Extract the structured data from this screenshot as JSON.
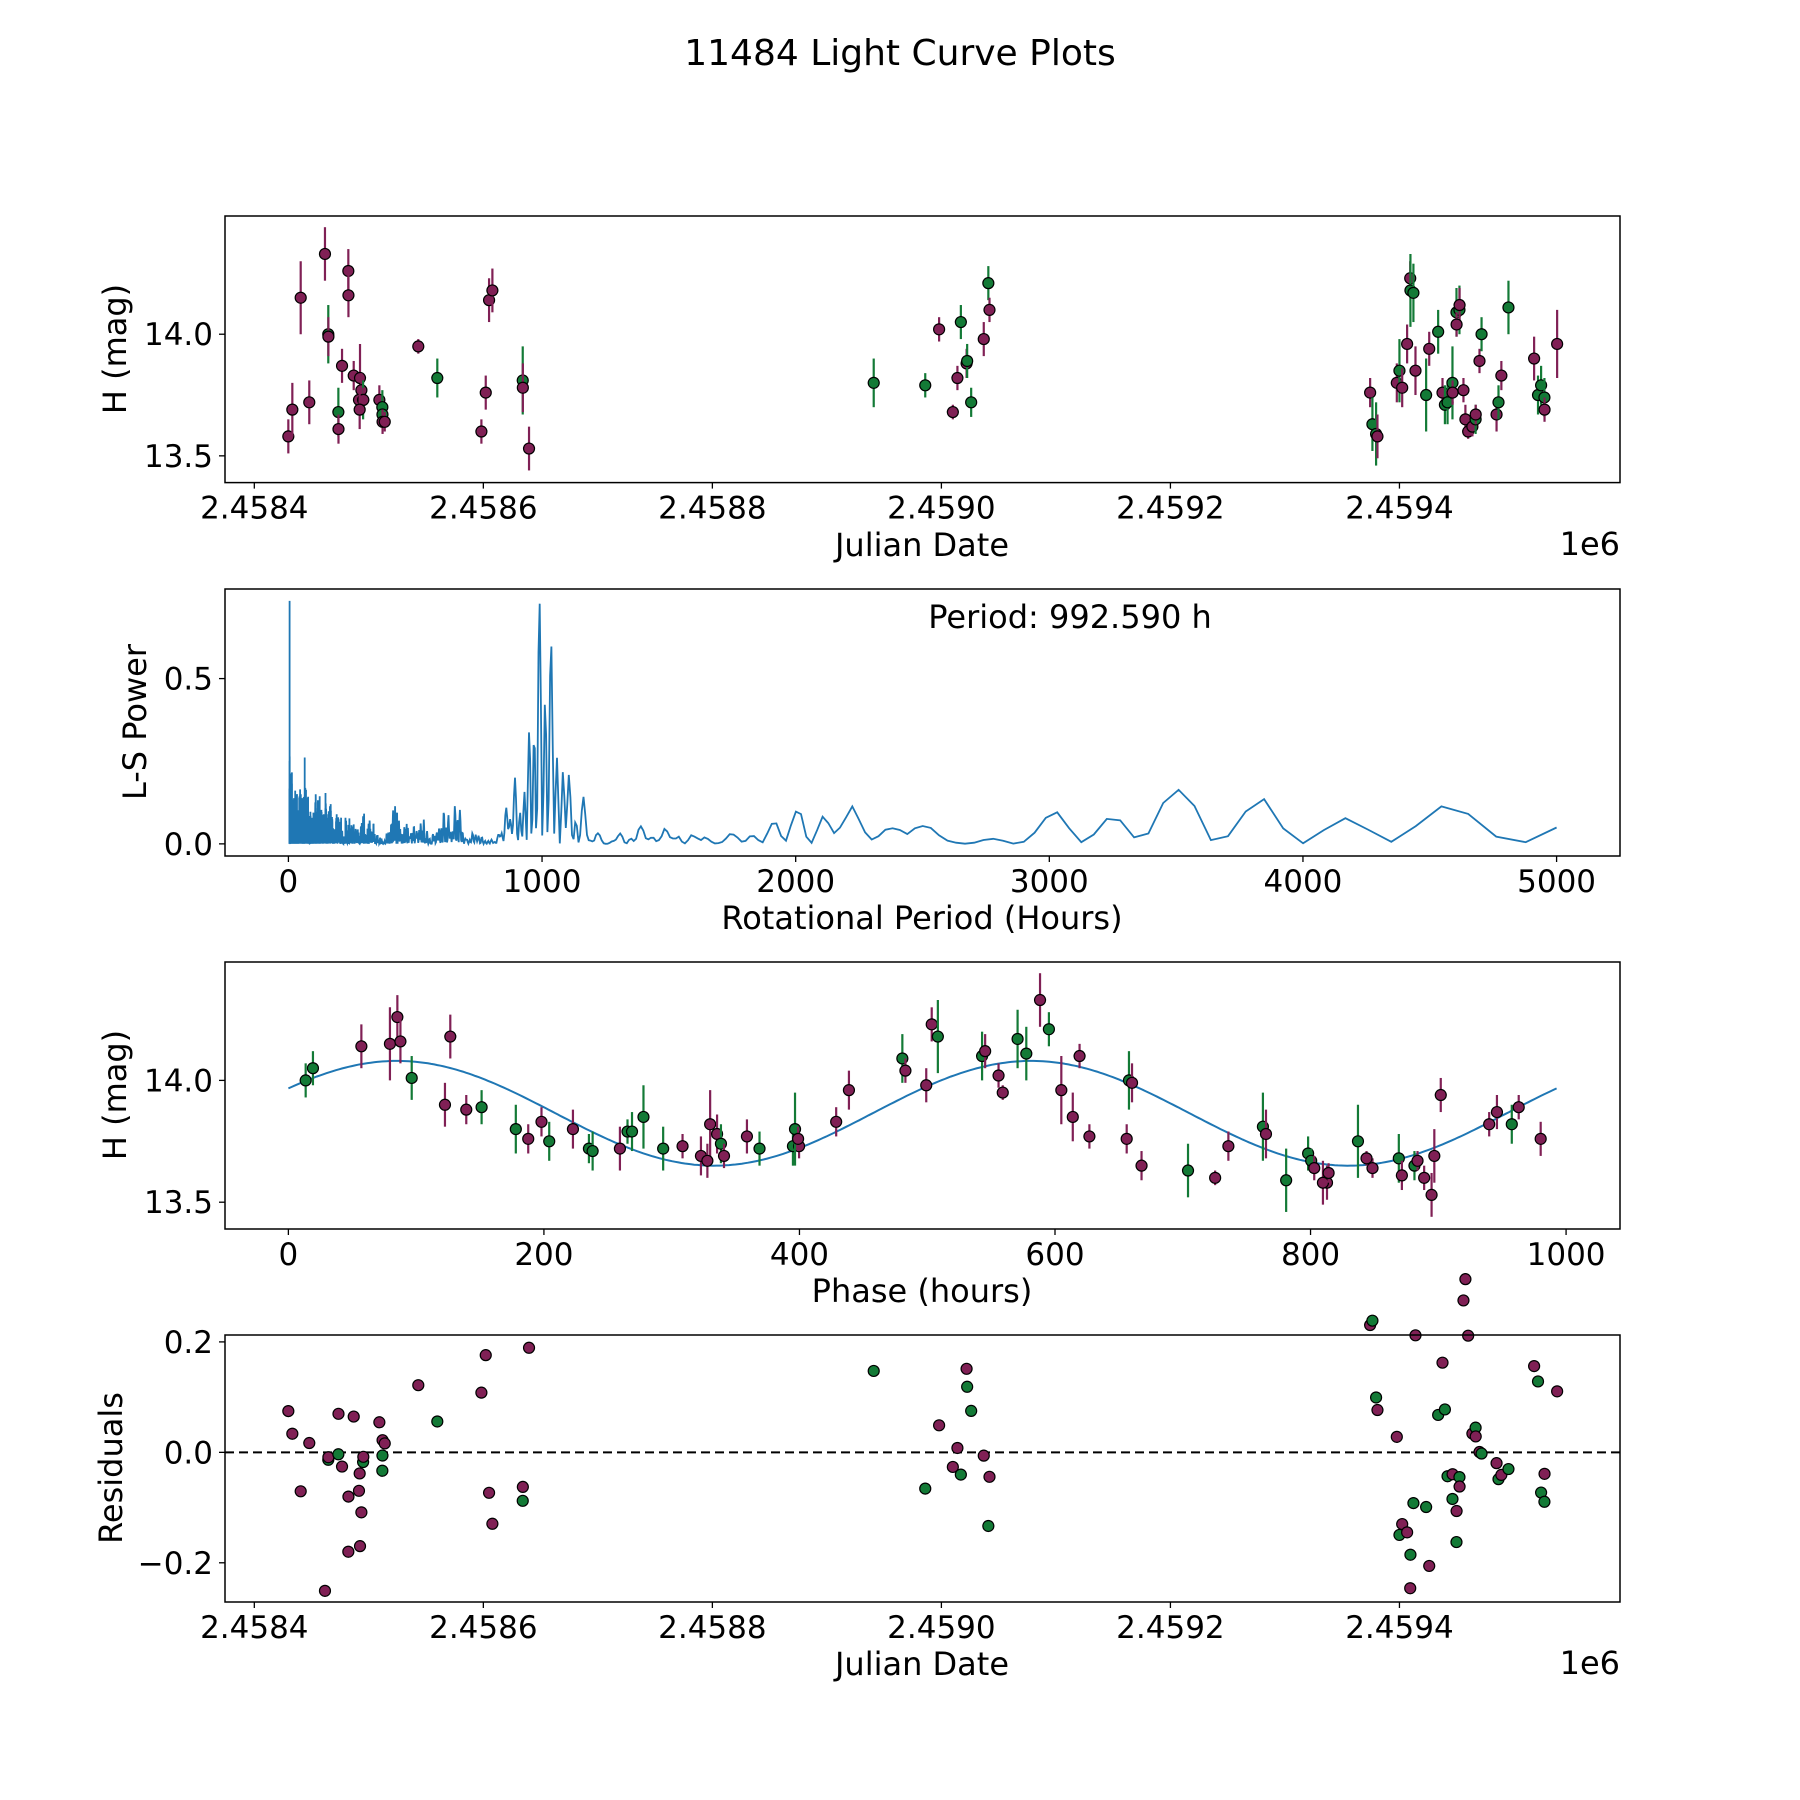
{
  "title": "11484 Light Curve Plots",
  "colors": {
    "group_a": "#802055",
    "group_b": "#137a36",
    "model_line": "#1f77b4",
    "axis": "#000000"
  },
  "chart_data": [
    {
      "type": "scatter",
      "id": "lightcurve",
      "title": "",
      "xlabel": "Julian Date",
      "ylabel": "H (mag)",
      "x_offset_label": "1e6",
      "xlim": [
        2458374.4,
        2459592.6
      ],
      "ylim": [
        13.39,
        14.486
      ],
      "xticks": [
        {
          "value": 2458400,
          "label": "2.4584"
        },
        {
          "value": 2458600,
          "label": "2.4586"
        },
        {
          "value": 2458800,
          "label": "2.4588"
        },
        {
          "value": 2459000,
          "label": "2.4590"
        },
        {
          "value": 2459200,
          "label": "2.4592"
        },
        {
          "value": 2459400,
          "label": "2.4594"
        }
      ],
      "yticks": [
        {
          "value": 13.5,
          "label": "13.5"
        },
        {
          "value": 14.0,
          "label": "14.0"
        }
      ],
      "point_fields": [
        "julian_date",
        "H_mag",
        "H_err",
        "group"
      ],
      "points": [
        [
          2458429.7,
          13.58,
          0.07,
          0
        ],
        [
          2458433.2,
          13.69,
          0.11,
          0
        ],
        [
          2458440.5,
          14.15,
          0.15,
          0
        ],
        [
          2458448.0,
          13.72,
          0.09,
          0
        ],
        [
          2458461.7,
          14.33,
          0.11,
          0
        ],
        [
          2458464.6,
          14.0,
          0.12,
          1
        ],
        [
          2458464.7,
          13.99,
          0.08,
          0
        ],
        [
          2458473.4,
          13.68,
          0.1,
          1
        ],
        [
          2458473.5,
          13.61,
          0.06,
          0
        ],
        [
          2458476.6,
          13.87,
          0.07,
          0
        ],
        [
          2458482.1,
          14.26,
          0.09,
          0
        ],
        [
          2458482.2,
          14.16,
          0.09,
          0
        ],
        [
          2458486.8,
          13.83,
          0.06,
          0
        ],
        [
          2458492.3,
          13.82,
          0.14,
          0
        ],
        [
          2458493.5,
          13.77,
          0.07,
          0
        ],
        [
          2458491.4,
          13.73,
          0.05,
          0
        ],
        [
          2458495.0,
          13.73,
          0.08,
          1
        ],
        [
          2458495.2,
          13.73,
          0.05,
          0
        ],
        [
          2458492.0,
          13.69,
          0.08,
          0
        ],
        [
          2458509.2,
          13.73,
          0.06,
          0
        ],
        [
          2458511.8,
          13.7,
          0.07,
          1
        ],
        [
          2458511.9,
          13.67,
          0.05,
          1
        ],
        [
          2458512.0,
          13.64,
          0.05,
          0
        ],
        [
          2458513.9,
          13.64,
          0.04,
          0
        ],
        [
          2458543.2,
          13.95,
          0.03,
          0
        ],
        [
          2458559.8,
          13.82,
          0.08,
          1
        ],
        [
          2458598.3,
          13.6,
          0.05,
          0
        ],
        [
          2458602.1,
          13.76,
          0.07,
          0
        ],
        [
          2458605.0,
          14.14,
          0.09,
          0
        ],
        [
          2458607.9,
          14.18,
          0.09,
          0
        ],
        [
          2458634.4,
          13.81,
          0.14,
          1
        ],
        [
          2458634.5,
          13.78,
          0.1,
          0
        ],
        [
          2458639.9,
          13.53,
          0.09,
          0
        ],
        [
          2458940.9,
          13.8,
          0.1,
          1
        ],
        [
          2458985.9,
          13.79,
          0.05,
          1
        ],
        [
          2458998.0,
          14.02,
          0.05,
          0
        ],
        [
          2459010.0,
          13.68,
          0.03,
          0
        ],
        [
          2459014.0,
          13.82,
          0.05,
          0
        ],
        [
          2459017.0,
          14.05,
          0.07,
          1
        ],
        [
          2459022.0,
          13.88,
          0.06,
          0
        ],
        [
          2459022.5,
          13.89,
          0.07,
          1
        ],
        [
          2459026.0,
          13.72,
          0.06,
          1
        ],
        [
          2459037.0,
          13.98,
          0.07,
          0
        ],
        [
          2459041.0,
          14.21,
          0.07,
          1
        ],
        [
          2459042.0,
          14.1,
          0.05,
          0
        ],
        [
          2459374.4,
          13.76,
          0.06,
          0
        ],
        [
          2459376.4,
          13.63,
          0.11,
          1
        ],
        [
          2459379.6,
          13.59,
          0.13,
          1
        ],
        [
          2459380.8,
          13.58,
          0.09,
          0
        ],
        [
          2459397.7,
          13.8,
          0.08,
          0
        ],
        [
          2459400.0,
          13.85,
          0.13,
          1
        ],
        [
          2459402.4,
          13.78,
          0.08,
          0
        ],
        [
          2459406.7,
          13.96,
          0.08,
          0
        ],
        [
          2459409.4,
          14.23,
          0.07,
          0
        ],
        [
          2459409.6,
          14.18,
          0.15,
          1
        ],
        [
          2459412.2,
          14.17,
          0.12,
          1
        ],
        [
          2459414.0,
          13.85,
          0.1,
          0
        ],
        [
          2459423.3,
          13.75,
          0.15,
          1
        ],
        [
          2459426.0,
          13.94,
          0.07,
          0
        ],
        [
          2459433.8,
          14.01,
          0.09,
          1
        ],
        [
          2459437.6,
          13.76,
          0.06,
          0
        ],
        [
          2459439.7,
          13.71,
          0.08,
          1
        ],
        [
          2459442.0,
          13.72,
          0.09,
          1
        ],
        [
          2459446.3,
          13.8,
          0.15,
          1
        ],
        [
          2459446.4,
          13.76,
          0.05,
          0
        ],
        [
          2459449.8,
          14.09,
          0.1,
          1
        ],
        [
          2459452.4,
          14.1,
          0.1,
          1
        ],
        [
          2459452.5,
          14.12,
          0.07,
          0
        ],
        [
          2459449.9,
          14.04,
          0.05,
          0
        ],
        [
          2459455.9,
          13.77,
          0.05,
          0
        ],
        [
          2459457.6,
          13.65,
          0.06,
          0
        ],
        [
          2459460.0,
          13.6,
          0.03,
          0
        ],
        [
          2459463.7,
          13.62,
          0.04,
          0
        ],
        [
          2459466.5,
          13.65,
          0.06,
          1
        ],
        [
          2459466.6,
          13.67,
          0.04,
          0
        ],
        [
          2459469.9,
          13.89,
          0.05,
          0
        ],
        [
          2459471.7,
          14.0,
          0.07,
          1
        ],
        [
          2459484.8,
          13.67,
          0.07,
          0
        ],
        [
          2459486.5,
          13.72,
          0.07,
          1
        ],
        [
          2459489.0,
          13.83,
          0.06,
          0
        ],
        [
          2459495.2,
          14.11,
          0.11,
          1
        ],
        [
          2459517.6,
          13.9,
          0.09,
          0
        ],
        [
          2459521.0,
          13.75,
          0.08,
          1
        ],
        [
          2459523.7,
          13.79,
          0.08,
          1
        ],
        [
          2459526.6,
          13.74,
          0.08,
          1
        ],
        [
          2459526.7,
          13.69,
          0.05,
          0
        ],
        [
          2459537.7,
          13.96,
          0.14,
          0
        ]
      ]
    },
    {
      "type": "line",
      "id": "periodogram",
      "xlabel": "Rotational Period (Hours)",
      "ylabel": "L-S Power",
      "annotation": "Period: 992.590 h",
      "peak_period_hours": 992.59,
      "peak_power": 0.735,
      "period_range": [
        4,
        5000
      ],
      "notable_peaks": [
        [
          40,
          0.65
        ],
        [
          992.59,
          0.735
        ],
        [
          1040,
          0.63
        ],
        [
          3530,
          0.16
        ],
        [
          3850,
          0.14
        ],
        [
          4600,
          0.12
        ]
      ],
      "xlim": [
        -250,
        5250
      ],
      "ylim": [
        -0.0367,
        0.771
      ],
      "xticks": [
        {
          "value": 0,
          "label": "0"
        },
        {
          "value": 1000,
          "label": "1000"
        },
        {
          "value": 2000,
          "label": "2000"
        },
        {
          "value": 3000,
          "label": "3000"
        },
        {
          "value": 4000,
          "label": "4000"
        },
        {
          "value": 5000,
          "label": "5000"
        }
      ],
      "yticks": [
        {
          "value": 0.0,
          "label": "0.0"
        },
        {
          "value": 0.5,
          "label": "0.5"
        }
      ]
    },
    {
      "type": "scatter",
      "id": "phased",
      "xlabel": "Phase (hours)",
      "ylabel": "H (mag)",
      "fold_period_hours": 992.59,
      "fold_epoch_jd": 2458395.83,
      "model": {
        "mean": 13.865,
        "amplitude": 0.215,
        "peak_phase_hours": 85,
        "harmonic": 2
      },
      "xlim": [
        -49.6,
        1042.2
      ],
      "ylim": [
        13.39,
        14.486
      ],
      "xticks": [
        {
          "value": 0,
          "label": "0"
        },
        {
          "value": 200,
          "label": "200"
        },
        {
          "value": 400,
          "label": "400"
        },
        {
          "value": 600,
          "label": "600"
        },
        {
          "value": 800,
          "label": "800"
        },
        {
          "value": 1000,
          "label": "1000"
        }
      ],
      "yticks": [
        {
          "value": 13.5,
          "label": "13.5"
        },
        {
          "value": 14.0,
          "label": "14.0"
        }
      ]
    },
    {
      "type": "scatter",
      "id": "residuals",
      "xlabel": "Julian Date",
      "ylabel": "Residuals",
      "x_offset_label": "1e6",
      "xlim": [
        2458374.4,
        2459592.6
      ],
      "ylim": [
        -0.271,
        0.2125
      ],
      "xticks": [
        {
          "value": 2458400,
          "label": "2.4584"
        },
        {
          "value": 2458600,
          "label": "2.4586"
        },
        {
          "value": 2458800,
          "label": "2.4588"
        },
        {
          "value": 2459000,
          "label": "2.4590"
        },
        {
          "value": 2459200,
          "label": "2.4592"
        },
        {
          "value": 2459400,
          "label": "2.4594"
        }
      ],
      "yticks": [
        {
          "value": -0.2,
          "label": "−0.2"
        },
        {
          "value": 0.0,
          "label": "0.0"
        },
        {
          "value": 0.2,
          "label": "0.2"
        }
      ]
    }
  ]
}
